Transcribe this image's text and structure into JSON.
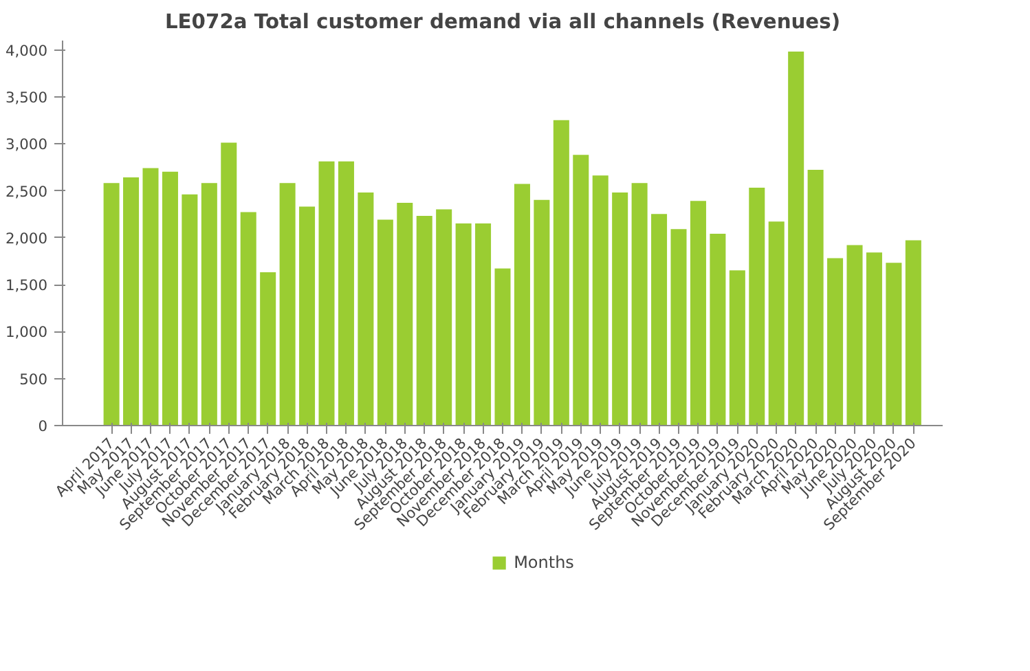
{
  "chart_data": {
    "type": "bar",
    "title": "LE072a Total customer demand via all channels (Revenues)",
    "categories": [
      "April 2017",
      "May 2017",
      "June 2017",
      "July 2017",
      "August 2017",
      "September 2017",
      "October 2017",
      "November 2017",
      "December 2017",
      "January 2018",
      "February 2018",
      "March 2018",
      "April 2018",
      "May 2018",
      "June 2018",
      "July 2018",
      "August 2018",
      "September 2018",
      "October 2018",
      "November 2018",
      "December 2018",
      "January 2019",
      "February 2019",
      "March 2019",
      "April 2019",
      "May 2019",
      "June 2019",
      "July 2019",
      "August 2019",
      "September 2019",
      "October 2019",
      "November 2019",
      "December 2019",
      "January 2020",
      "February 2020",
      "March 2020",
      "April 2020",
      "May 2020",
      "June 2020",
      "July 2020",
      "August 2020",
      "September 2020"
    ],
    "series": [
      {
        "name": "Months",
        "color": "#9acd32",
        "values": [
          2590,
          2650,
          2750,
          2710,
          2470,
          2590,
          3020,
          2280,
          1640,
          2590,
          2340,
          2820,
          2820,
          2490,
          2200,
          2380,
          2240,
          2310,
          2160,
          2160,
          1680,
          2580,
          2410,
          3260,
          2890,
          2670,
          2490,
          2590,
          2260,
          2100,
          2400,
          2050,
          1660,
          2540,
          2180,
          3990,
          2730,
          1790,
          1930,
          1850,
          1740,
          1980
        ]
      }
    ],
    "ylim": [
      0,
      4100
    ],
    "yticks": [
      0,
      500,
      {
        "value": 1000,
        "label": "1,000"
      },
      {
        "value": 1500,
        "label": "1,500"
      },
      {
        "value": 2000,
        "label": "2,000"
      },
      {
        "value": 2500,
        "label": "2,500"
      },
      {
        "value": 3000,
        "label": "3,000"
      },
      {
        "value": 3500,
        "label": "3,500"
      },
      {
        "value": 4000,
        "label": "4,000"
      }
    ],
    "grid": false,
    "legend": "bottom"
  }
}
